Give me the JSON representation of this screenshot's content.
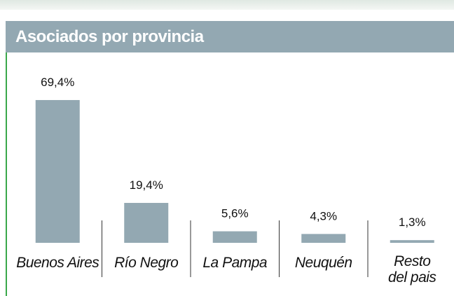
{
  "title": "Asociados por provincia",
  "chart_data": {
    "type": "bar",
    "categories": [
      "Buenos Aires",
      "Río Negro",
      "La Pampa",
      "Neuquén",
      "Resto del pais"
    ],
    "values": [
      69.4,
      19.4,
      5.6,
      4.3,
      1.3
    ],
    "value_labels": [
      "69,4%",
      "19,4%",
      "5,6%",
      "4,3%",
      "1,3%"
    ],
    "color": "#93a8b2"
  }
}
